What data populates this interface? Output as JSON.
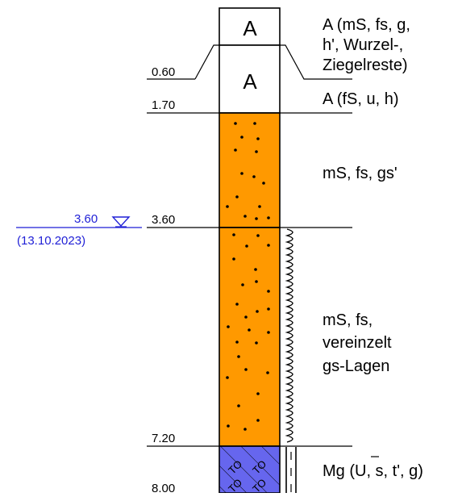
{
  "water_level": {
    "depth": "3.60",
    "date": "(13.10.2023)",
    "color": "#1f1fd6"
  },
  "depth_marks": [
    "0.60",
    "1.70",
    "3.60",
    "7.20",
    "8.00"
  ],
  "layers": [
    {
      "symbol": "A",
      "description_lines": [
        "A (mS, fs, g,",
        "h', Wurzel-,",
        "Ziegelreste)"
      ],
      "fill": "#ffffff"
    },
    {
      "symbol": "A",
      "description_lines": [
        "A (fS, u, h)"
      ],
      "fill": "#ffffff"
    },
    {
      "symbol": "",
      "description_lines": [
        "mS, fs, gs'"
      ],
      "fill": "#ff9900"
    },
    {
      "symbol": "",
      "description_lines": [
        "mS, fs,",
        "vereinzelt",
        "gs-Lagen"
      ],
      "fill": "#ff9900"
    },
    {
      "symbol": "",
      "description_lines": [
        "Mg (U, s, t', g)"
      ],
      "fill": "#6666ee"
    }
  ],
  "colors": {
    "sand": "#ff9900",
    "marl": "#6666ee",
    "line": "#000000"
  }
}
